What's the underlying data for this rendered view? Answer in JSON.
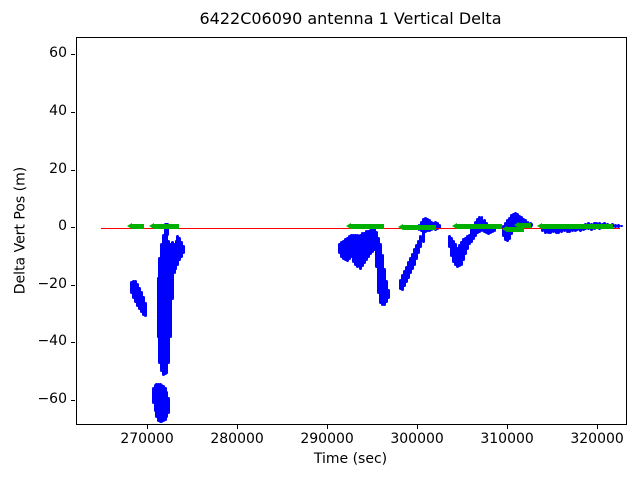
{
  "chart_data": {
    "type": "scatter",
    "title": "6422C06090 antenna 1 Vertical Delta",
    "xlabel": "Time (sec)",
    "ylabel": "Delta Vert Pos (m)",
    "xlim": [
      262100,
      323100
    ],
    "ylim": [
      -68,
      66
    ],
    "grid": false,
    "legend": null,
    "x_ticks": [
      270000,
      280000,
      290000,
      300000,
      310000,
      320000
    ],
    "x_tick_labels": [
      "270000",
      "280000",
      "290000",
      "300000",
      "310000",
      "320000"
    ],
    "y_ticks": [
      -60,
      -40,
      -20,
      0,
      20,
      40,
      60
    ],
    "y_tick_labels": [
      "−60",
      "−40",
      "−20",
      "0",
      "20",
      "40",
      "60"
    ],
    "colors": {
      "scatter": "#0000ff",
      "truth": "#00b000",
      "reference": "#ff0000",
      "text": "#000000"
    },
    "zero_reference_line": {
      "x0": 264800,
      "x1": 322400,
      "y": 0
    },
    "truth_marker_segments": [
      {
        "t0": 268230,
        "t1": 269560,
        "y": 0.4
      },
      {
        "t0": 270670,
        "t1": 273440,
        "y": 0.5
      },
      {
        "t0": 292550,
        "t1": 296220,
        "y": 0.5
      },
      {
        "t0": 298330,
        "t1": 302000,
        "y": 0.3
      },
      {
        "t0": 304330,
        "t1": 309330,
        "y": 0.5
      },
      {
        "t0": 309890,
        "t1": 311770,
        "y": -0.4
      },
      {
        "t0": 311220,
        "t1": 312550,
        "y": 0.9
      },
      {
        "t0": 313770,
        "t1": 321660,
        "y": 0.4
      }
    ],
    "scatter_strips_note": "each strip = [time_sec, y_top_m, y_bottom_m, optional_width_sec]; dense vertical extents of the blue point cloud",
    "scatter_strips": [
      [
        268150,
        -18.5,
        -23
      ],
      [
        268380,
        -18,
        -24.5
      ],
      [
        268610,
        -18,
        -26
      ],
      [
        268840,
        -19,
        -27.5
      ],
      [
        269070,
        -20.5,
        -28.5
      ],
      [
        269300,
        -22,
        -29.5
      ],
      [
        269530,
        -23.5,
        -30.5
      ],
      [
        269730,
        -25.5,
        -31
      ],
      [
        270620,
        -55,
        -61
      ],
      [
        270800,
        -54,
        -64
      ],
      [
        270980,
        -53.8,
        -66
      ],
      [
        271160,
        -53.6,
        -67.4
      ],
      [
        271340,
        -53.6,
        -67.8
      ],
      [
        271520,
        -54,
        -67.8
      ],
      [
        271700,
        -54.5,
        -67.4
      ],
      [
        271880,
        -55,
        -67
      ],
      [
        272060,
        -56.5,
        -66
      ],
      [
        272230,
        -58.5,
        -64.5
      ],
      [
        271100,
        -17,
        -38
      ],
      [
        271300,
        -10,
        -47
      ],
      [
        271500,
        -5,
        -50
      ],
      [
        271700,
        -2,
        -51.5
      ],
      [
        271900,
        -0.5,
        -51
      ],
      [
        272100,
        -1,
        -50.5
      ],
      [
        272300,
        -4,
        -47
      ],
      [
        272500,
        -5,
        -38
      ],
      [
        272700,
        -4.5,
        -25
      ],
      [
        272900,
        -5,
        -16
      ],
      [
        273100,
        -4,
        -14.5
      ],
      [
        273300,
        -2.5,
        -13
      ],
      [
        273500,
        -3,
        -11.5
      ],
      [
        273700,
        -4.5,
        -10.5
      ],
      [
        273900,
        -6,
        -9
      ],
      [
        272050,
        1.7,
        -2.8,
        500
      ],
      [
        271700,
        -26.5,
        -28.2,
        1300
      ],
      [
        271700,
        -33,
        -34.6,
        1200
      ],
      [
        271650,
        -45.5,
        -47,
        1100
      ],
      [
        271380,
        -57.5,
        -59,
        1500
      ],
      [
        271380,
        -61.5,
        -63,
        1300
      ],
      [
        291250,
        -5,
        -9
      ],
      [
        291480,
        -4.5,
        -10.5
      ],
      [
        291710,
        -4,
        -11
      ],
      [
        291940,
        -3.5,
        -11.5
      ],
      [
        292170,
        -3,
        -11.8
      ],
      [
        292400,
        -2.5,
        -11
      ],
      [
        292630,
        -2.2,
        -10.5
      ],
      [
        292860,
        -2,
        -12
      ],
      [
        293090,
        -2,
        -13
      ],
      [
        293320,
        -2.2,
        -14
      ],
      [
        293550,
        -2,
        -14.6
      ],
      [
        293780,
        -1.5,
        -13.5
      ],
      [
        294010,
        -1.2,
        -12.5
      ],
      [
        294240,
        -0.8,
        -11.5
      ],
      [
        294470,
        -0.5,
        -10.5
      ],
      [
        294700,
        -0.3,
        -9.5
      ],
      [
        294930,
        0,
        -8.5
      ],
      [
        295160,
        0.3,
        -8
      ],
      [
        295390,
        -1,
        -14
      ],
      [
        295620,
        -3,
        -23
      ],
      [
        295850,
        -5,
        -26.5
      ],
      [
        296080,
        -9,
        -27
      ],
      [
        296310,
        -14,
        -27
      ],
      [
        296540,
        -18,
        -26
      ],
      [
        296740,
        -21,
        -24.5
      ],
      [
        298020,
        -17.5,
        -21.6
      ],
      [
        298250,
        -16,
        -21.8
      ],
      [
        298480,
        -14.5,
        -20.5
      ],
      [
        298710,
        -13,
        -19
      ],
      [
        298940,
        -11.5,
        -17.5
      ],
      [
        299170,
        -10,
        -16
      ],
      [
        299400,
        -8.5,
        -14.5
      ],
      [
        299630,
        -7,
        -13
      ],
      [
        299860,
        -5.5,
        -11
      ],
      [
        300090,
        -4,
        -9
      ],
      [
        300320,
        -2.5,
        -7
      ],
      [
        300550,
        -1.5,
        -5
      ],
      [
        300100,
        1.5,
        -1
      ],
      [
        300330,
        2.5,
        -1.5
      ],
      [
        300560,
        3.5,
        -2
      ],
      [
        300790,
        3.8,
        -1.8
      ],
      [
        301020,
        3.5,
        -1.2
      ],
      [
        301250,
        3,
        -1.5
      ],
      [
        301480,
        2.6,
        -1
      ],
      [
        301710,
        2.2,
        -0.6
      ],
      [
        301940,
        2.6,
        -1
      ],
      [
        302180,
        2,
        -0.5
      ],
      [
        302400,
        1.4,
        -0.4
      ],
      [
        303500,
        -2.5,
        -7
      ],
      [
        303720,
        -3,
        -10
      ],
      [
        303940,
        -4,
        -12
      ],
      [
        304160,
        -5,
        -13.3
      ],
      [
        304380,
        -6.5,
        -13.7
      ],
      [
        304600,
        -5.5,
        -13.5
      ],
      [
        304820,
        -4.5,
        -13
      ],
      [
        305040,
        -3.5,
        -11.5
      ],
      [
        305260,
        -3,
        -9.5
      ],
      [
        305480,
        -2.5,
        -7.5
      ],
      [
        305700,
        -2,
        -6
      ],
      [
        305950,
        0.5,
        -5
      ],
      [
        306180,
        1.5,
        -4
      ],
      [
        306410,
        2.5,
        -3
      ],
      [
        306640,
        3.5,
        -2.2
      ],
      [
        306870,
        4.3,
        -1.8
      ],
      [
        307100,
        4.1,
        -1.2
      ],
      [
        307330,
        3.2,
        -1.6
      ],
      [
        307560,
        2.2,
        -2
      ],
      [
        307790,
        1.2,
        -2.4
      ],
      [
        308020,
        0.6,
        -2
      ],
      [
        308250,
        0.2,
        -1.6
      ],
      [
        308480,
        0,
        -1.2
      ],
      [
        309450,
        1,
        -3
      ],
      [
        309680,
        2,
        -4.5
      ],
      [
        309910,
        3,
        -4.9
      ],
      [
        310140,
        4,
        -4
      ],
      [
        310370,
        4.8,
        -2.5
      ],
      [
        310600,
        5.3,
        -1.2
      ],
      [
        310830,
        5.5,
        -0.3
      ],
      [
        311060,
        5.2,
        -0.6
      ],
      [
        311290,
        4.6,
        -0.2
      ],
      [
        311520,
        4.2,
        0.3
      ],
      [
        311750,
        3.6,
        -0.1
      ],
      [
        311980,
        3.1,
        0.2
      ],
      [
        312210,
        2.6,
        -0.1
      ],
      [
        312440,
        2.2,
        0.2
      ],
      [
        312650,
        1.8,
        0.3
      ],
      [
        313850,
        1.5,
        -1.5
      ],
      [
        314150,
        1.1,
        -2
      ],
      [
        314450,
        0.9,
        -2.1
      ],
      [
        314750,
        1,
        -1.9
      ],
      [
        315050,
        1.2,
        -1.6
      ],
      [
        315350,
        1,
        -1.9
      ],
      [
        315650,
        0.8,
        -2
      ],
      [
        315950,
        1,
        -1.6
      ],
      [
        316250,
        1.2,
        -1.3
      ],
      [
        316550,
        1,
        -1.6
      ],
      [
        316850,
        0.9,
        -1.8
      ],
      [
        317150,
        1,
        -1.5
      ],
      [
        317450,
        1.2,
        -1.2
      ],
      [
        317750,
        1.4,
        -1
      ],
      [
        318050,
        1.2,
        -1.3
      ],
      [
        318350,
        1.5,
        -1
      ],
      [
        318650,
        1.8,
        -0.8
      ],
      [
        318950,
        2,
        -0.6
      ],
      [
        319250,
        1.8,
        -0.9
      ],
      [
        319550,
        2,
        -0.5
      ],
      [
        319850,
        2.2,
        -0.4
      ],
      [
        320150,
        2,
        -0.6
      ],
      [
        320450,
        1.8,
        -0.3
      ],
      [
        320750,
        2,
        -0.1
      ],
      [
        321050,
        1.8,
        -0.3
      ],
      [
        321350,
        1.6,
        0
      ],
      [
        321650,
        1.8,
        0.1
      ],
      [
        321950,
        1.5,
        0
      ],
      [
        322250,
        1.3,
        0.2
      ],
      [
        322550,
        1.1,
        0.3
      ]
    ]
  }
}
